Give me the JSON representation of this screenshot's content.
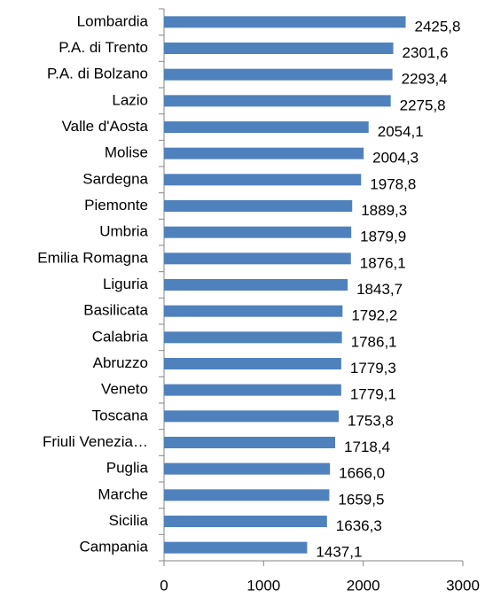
{
  "chart_data": {
    "type": "bar",
    "orientation": "horizontal",
    "categories": [
      "Lombardia",
      "P.A. di Trento",
      "P.A. di Bolzano",
      "Lazio",
      "Valle d'Aosta",
      "Molise",
      "Sardegna",
      "Piemonte",
      "Umbria",
      "Emilia Romagna",
      "Liguria",
      "Basilicata",
      "Calabria",
      "Abruzzo",
      "Veneto",
      "Toscana",
      "Friuli Venezia…",
      "Puglia",
      "Marche",
      "Sicilia",
      "Campania"
    ],
    "values": [
      2425.8,
      2301.6,
      2293.4,
      2275.8,
      2054.1,
      2004.3,
      1978.8,
      1889.3,
      1879.9,
      1876.1,
      1843.7,
      1792.2,
      1786.1,
      1779.3,
      1779.1,
      1753.8,
      1718.4,
      1666.0,
      1659.5,
      1636.3,
      1437.1
    ],
    "value_labels": [
      "2425,8",
      "2301,6",
      "2293,4",
      "2275,8",
      "2054,1",
      "2004,3",
      "1978,8",
      "1889,3",
      "1879,9",
      "1876,1",
      "1843,7",
      "1792,2",
      "1786,1",
      "1779,3",
      "1779,1",
      "1753,8",
      "1718,4",
      "1666,0",
      "1659,5",
      "1636,3",
      "1437,1"
    ],
    "color": "#4f81bd",
    "xlim": [
      0,
      3000
    ],
    "xticks": [
      0,
      1000,
      2000,
      3000
    ],
    "grid": false
  }
}
